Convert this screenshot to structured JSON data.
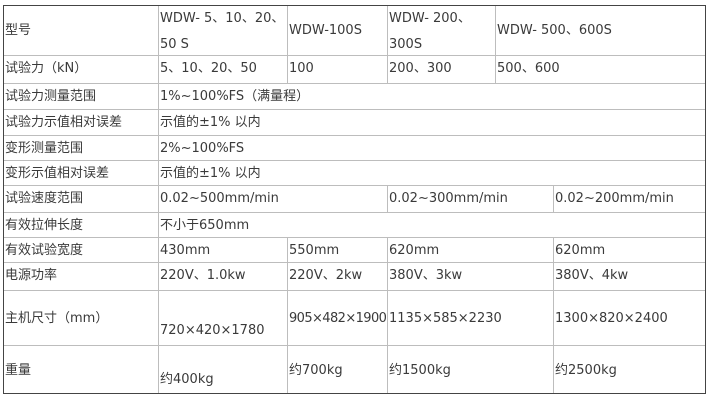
{
  "rows": [
    {
      "label": "型号",
      "cells": [
        "WDW- 5、10、20、50 S",
        "WDW-100S",
        "WDW- 200、300S",
        "WDW- 500、600S"
      ]
    },
    {
      "label": "试验力（kN）",
      "cells": [
        "5、10、20、50",
        "100",
        "200、300",
        "500、600"
      ]
    },
    {
      "label": "试验力测量范围",
      "cells": [
        "1%~100%FS（满量程）"
      ]
    },
    {
      "label": "试验力示值相对误差",
      "cells": [
        "示值的±1% 以内"
      ]
    },
    {
      "label": "变形测量范围",
      "cells": [
        "2%~100%FS"
      ]
    },
    {
      "label": "变形示值相对误差",
      "cells": [
        "示值的±1% 以内"
      ]
    },
    {
      "label": "试验速度范围",
      "cells": [
        "0.02~500mm/min",
        "0.02~300mm/min",
        "0.02~200mm/min"
      ]
    },
    {
      "label": "有效拉伸长度",
      "cells": [
        "不小于650mm"
      ]
    },
    {
      "label": "有效试验宽度",
      "cells": [
        "430mm",
        "550mm",
        "620mm",
        "620mm"
      ]
    },
    {
      "label": "电源功率",
      "cells": [
        "220V、1.0kw",
        "220V、2kw",
        "380V、3kw",
        "380V、4kw"
      ]
    },
    {
      "label": "主机尺寸（mm）",
      "cells": [
        "720×420×1780",
        "905×482×1900",
        "1135×585×2230",
        "1300×820×2400"
      ]
    },
    {
      "label": "重量",
      "cells": [
        "约400kg",
        "约700kg",
        "约1500kg",
        "约2500kg"
      ]
    }
  ]
}
